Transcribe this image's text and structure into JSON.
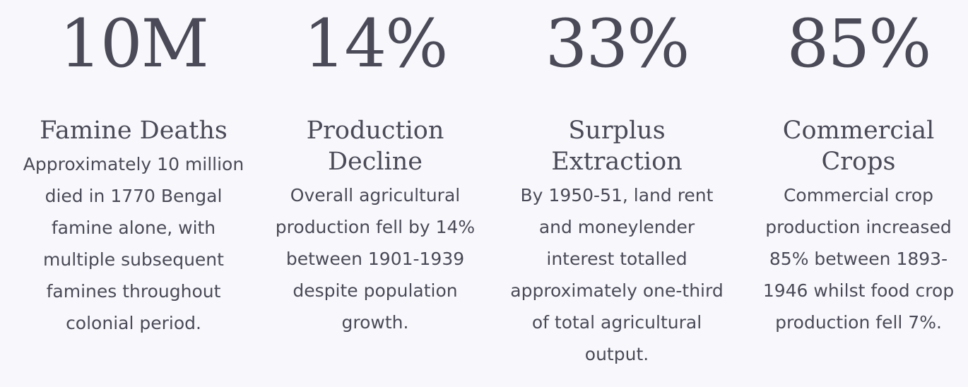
{
  "stats": [
    {
      "value": "10M",
      "title": "Famine Deaths",
      "description": "Approximately 10 million died in 1770 Bengal famine alone, with multiple subsequent famines throughout colonial period."
    },
    {
      "value": "14%",
      "title": "Production Decline",
      "description": "Overall agricultural production fell by 14% between 1901-1939 despite population growth."
    },
    {
      "value": "33%",
      "title": "Surplus Extraction",
      "description": "By 1950-51, land rent and moneylender interest totalled approximately one-third of total agricultural output."
    },
    {
      "value": "85%",
      "title": "Commercial Crops",
      "description": "Commercial crop production increased 85% between 1893-1946 whilst food crop production fell 7%."
    }
  ]
}
